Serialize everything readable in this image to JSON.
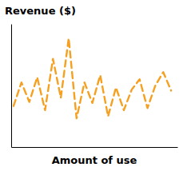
{
  "chart_data": {
    "type": "line",
    "title": "Revenue ($)",
    "xlabel": "Amount of use",
    "x": [
      0,
      1,
      2,
      3,
      4,
      5,
      6,
      7,
      8,
      9,
      10,
      11,
      12,
      13,
      14,
      15,
      16,
      17,
      18,
      19,
      20
    ],
    "values": [
      0.32,
      0.55,
      0.36,
      0.6,
      0.28,
      0.78,
      0.4,
      0.98,
      0.2,
      0.55,
      0.35,
      0.62,
      0.22,
      0.5,
      0.28,
      0.48,
      0.58,
      0.3,
      0.52,
      0.65,
      0.47
    ],
    "color": "#F5A020",
    "line_style": "dashed",
    "xlim": [
      -0.3,
      20.8
    ],
    "ylim": [
      -0.08,
      1.12
    ],
    "xticks": [],
    "yticks": [],
    "tick_labels": false
  }
}
